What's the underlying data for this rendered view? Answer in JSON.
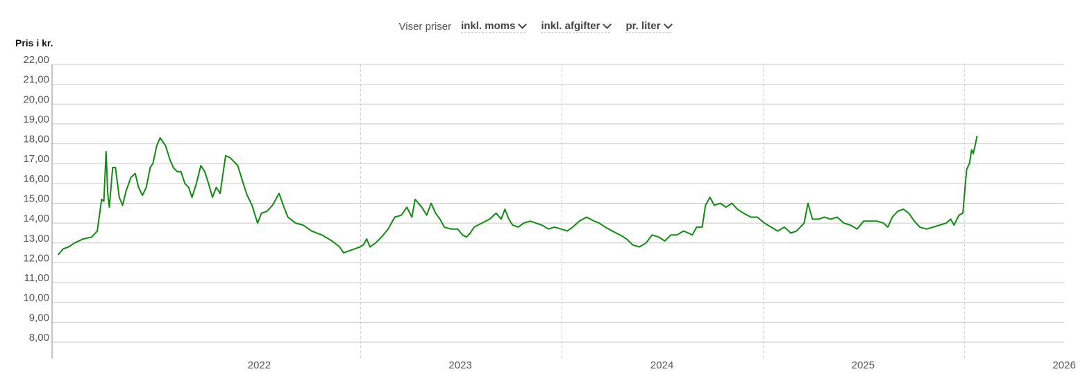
{
  "controls": {
    "label": "Viser priser",
    "options": [
      "inkl. moms",
      "inkl. afgifter",
      "pr. liter"
    ]
  },
  "chart_data": {
    "type": "line",
    "ylabel": "Pris i kr.",
    "ylim": [
      8,
      22
    ],
    "yticks": [
      "22,00",
      "21,00",
      "20,00",
      "19,00",
      "18,00",
      "17,00",
      "16,00",
      "15,00",
      "14,00",
      "13,00",
      "12,00",
      "11,00",
      "10,00",
      "9,00",
      "8,00"
    ],
    "xticks": [
      "2022",
      "2023",
      "2024",
      "2025",
      "2026"
    ],
    "xlim": [
      "2021-06-20",
      "2026-07-01"
    ],
    "grid": true,
    "line_color": "#118a11",
    "series": [
      {
        "values": [
          [
            "2021-07-01",
            12.4
          ],
          [
            "2021-07-10",
            12.7
          ],
          [
            "2021-07-20",
            12.8
          ],
          [
            "2021-07-31",
            13.0
          ],
          [
            "2021-08-15",
            13.2
          ],
          [
            "2021-08-31",
            13.3
          ],
          [
            "2021-09-10",
            13.6
          ],
          [
            "2021-09-18",
            15.2
          ],
          [
            "2021-09-22",
            15.1
          ],
          [
            "2021-09-26",
            17.6
          ],
          [
            "2021-09-29",
            15.5
          ],
          [
            "2021-10-02",
            14.8
          ],
          [
            "2021-10-08",
            16.8
          ],
          [
            "2021-10-13",
            16.8
          ],
          [
            "2021-10-20",
            15.3
          ],
          [
            "2021-10-26",
            14.9
          ],
          [
            "2021-11-01",
            15.6
          ],
          [
            "2021-11-10",
            16.3
          ],
          [
            "2021-11-18",
            16.5
          ],
          [
            "2021-11-24",
            15.8
          ],
          [
            "2021-12-01",
            15.4
          ],
          [
            "2021-12-08",
            15.8
          ],
          [
            "2021-12-15",
            16.8
          ],
          [
            "2021-12-20",
            17.0
          ],
          [
            "2021-12-27",
            17.9
          ],
          [
            "2022-01-02",
            18.3
          ],
          [
            "2022-01-12",
            17.9
          ],
          [
            "2022-01-20",
            17.2
          ],
          [
            "2022-01-26",
            16.8
          ],
          [
            "2022-02-02",
            16.6
          ],
          [
            "2022-02-09",
            16.6
          ],
          [
            "2022-02-16",
            16.0
          ],
          [
            "2022-02-23",
            15.8
          ],
          [
            "2022-03-01",
            15.3
          ],
          [
            "2022-03-09",
            16.0
          ],
          [
            "2022-03-17",
            16.9
          ],
          [
            "2022-03-24",
            16.6
          ],
          [
            "2022-03-31",
            16.0
          ],
          [
            "2022-04-07",
            15.3
          ],
          [
            "2022-04-14",
            15.8
          ],
          [
            "2022-04-21",
            15.5
          ],
          [
            "2022-05-01",
            17.4
          ],
          [
            "2022-05-09",
            17.3
          ],
          [
            "2022-05-16",
            17.1
          ],
          [
            "2022-05-23",
            16.9
          ],
          [
            "2022-06-02",
            16.0
          ],
          [
            "2022-06-09",
            15.4
          ],
          [
            "2022-06-18",
            14.9
          ],
          [
            "2022-06-28",
            14.0
          ],
          [
            "2022-07-05",
            14.5
          ],
          [
            "2022-07-15",
            14.6
          ],
          [
            "2022-07-25",
            14.9
          ],
          [
            "2022-08-06",
            15.5
          ],
          [
            "2022-08-15",
            14.8
          ],
          [
            "2022-08-22",
            14.3
          ],
          [
            "2022-09-05",
            14.0
          ],
          [
            "2022-09-19",
            13.9
          ],
          [
            "2022-10-04",
            13.6
          ],
          [
            "2022-10-23",
            13.4
          ],
          [
            "2022-11-10",
            13.1
          ],
          [
            "2022-11-24",
            12.8
          ],
          [
            "2022-12-01",
            12.5
          ],
          [
            "2022-12-11",
            12.6
          ],
          [
            "2022-12-21",
            12.7
          ],
          [
            "2022-12-31",
            12.8
          ],
          [
            "2023-01-06",
            12.9
          ],
          [
            "2023-01-12",
            13.2
          ],
          [
            "2023-01-18",
            12.8
          ],
          [
            "2023-01-28",
            13.0
          ],
          [
            "2023-02-08",
            13.3
          ],
          [
            "2023-02-20",
            13.7
          ],
          [
            "2023-03-04",
            14.3
          ],
          [
            "2023-03-16",
            14.4
          ],
          [
            "2023-03-26",
            14.8
          ],
          [
            "2023-04-04",
            14.3
          ],
          [
            "2023-04-10",
            15.2
          ],
          [
            "2023-04-16",
            15.0
          ],
          [
            "2023-04-22",
            14.8
          ],
          [
            "2023-05-01",
            14.4
          ],
          [
            "2023-05-09",
            15.0
          ],
          [
            "2023-05-17",
            14.5
          ],
          [
            "2023-05-25",
            14.2
          ],
          [
            "2023-06-02",
            13.8
          ],
          [
            "2023-06-14",
            13.7
          ],
          [
            "2023-06-26",
            13.7
          ],
          [
            "2023-07-05",
            13.4
          ],
          [
            "2023-07-12",
            13.3
          ],
          [
            "2023-07-19",
            13.5
          ],
          [
            "2023-07-26",
            13.8
          ],
          [
            "2023-08-09",
            14.0
          ],
          [
            "2023-08-23",
            14.2
          ],
          [
            "2023-09-04",
            14.5
          ],
          [
            "2023-09-13",
            14.2
          ],
          [
            "2023-09-20",
            14.7
          ],
          [
            "2023-09-27",
            14.2
          ],
          [
            "2023-10-04",
            13.9
          ],
          [
            "2023-10-14",
            13.8
          ],
          [
            "2023-10-24",
            14.0
          ],
          [
            "2023-11-05",
            14.1
          ],
          [
            "2023-11-15",
            14.0
          ],
          [
            "2023-11-26",
            13.9
          ],
          [
            "2023-12-08",
            13.7
          ],
          [
            "2023-12-19",
            13.8
          ],
          [
            "2023-12-31",
            13.7
          ],
          [
            "2024-01-11",
            13.6
          ],
          [
            "2024-01-21",
            13.8
          ],
          [
            "2024-02-02",
            14.1
          ],
          [
            "2024-02-15",
            14.3
          ],
          [
            "2024-02-29",
            14.1
          ],
          [
            "2024-03-09",
            14.0
          ],
          [
            "2024-03-20",
            13.8
          ],
          [
            "2024-04-02",
            13.6
          ],
          [
            "2024-04-16",
            13.4
          ],
          [
            "2024-04-28",
            13.2
          ],
          [
            "2024-05-09",
            12.9
          ],
          [
            "2024-05-21",
            12.8
          ],
          [
            "2024-06-02",
            13.0
          ],
          [
            "2024-06-13",
            13.4
          ],
          [
            "2024-06-25",
            13.3
          ],
          [
            "2024-07-06",
            13.1
          ],
          [
            "2024-07-17",
            13.4
          ],
          [
            "2024-07-28",
            13.4
          ],
          [
            "2024-08-09",
            13.6
          ],
          [
            "2024-08-18",
            13.5
          ],
          [
            "2024-08-25",
            13.4
          ],
          [
            "2024-09-02",
            13.8
          ],
          [
            "2024-09-12",
            13.8
          ],
          [
            "2024-09-18",
            14.9
          ],
          [
            "2024-09-26",
            15.3
          ],
          [
            "2024-10-04",
            14.9
          ],
          [
            "2024-10-15",
            15.0
          ],
          [
            "2024-10-25",
            14.8
          ],
          [
            "2024-11-05",
            15.0
          ],
          [
            "2024-11-15",
            14.7
          ],
          [
            "2024-11-26",
            14.5
          ],
          [
            "2024-12-09",
            14.3
          ],
          [
            "2024-12-21",
            14.3
          ],
          [
            "2025-01-03",
            14.0
          ],
          [
            "2025-01-15",
            13.8
          ],
          [
            "2025-01-27",
            13.6
          ],
          [
            "2025-02-08",
            13.8
          ],
          [
            "2025-02-20",
            13.5
          ],
          [
            "2025-03-02",
            13.6
          ],
          [
            "2025-03-09",
            13.8
          ],
          [
            "2025-03-16",
            14.0
          ],
          [
            "2025-03-23",
            15.0
          ],
          [
            "2025-03-31",
            14.2
          ],
          [
            "2025-04-11",
            14.2
          ],
          [
            "2025-04-22",
            14.3
          ],
          [
            "2025-05-03",
            14.2
          ],
          [
            "2025-05-15",
            14.3
          ],
          [
            "2025-05-27",
            14.0
          ],
          [
            "2025-06-08",
            13.9
          ],
          [
            "2025-06-20",
            13.7
          ],
          [
            "2025-07-02",
            14.1
          ],
          [
            "2025-07-14",
            14.1
          ],
          [
            "2025-07-26",
            14.1
          ],
          [
            "2025-08-07",
            14.0
          ],
          [
            "2025-08-15",
            13.8
          ],
          [
            "2025-08-23",
            14.3
          ],
          [
            "2025-09-02",
            14.6
          ],
          [
            "2025-09-12",
            14.7
          ],
          [
            "2025-09-22",
            14.5
          ],
          [
            "2025-10-02",
            14.1
          ],
          [
            "2025-10-12",
            13.8
          ],
          [
            "2025-10-24",
            13.7
          ],
          [
            "2025-11-05",
            13.8
          ],
          [
            "2025-11-17",
            13.9
          ],
          [
            "2025-11-29",
            14.0
          ],
          [
            "2025-12-07",
            14.2
          ],
          [
            "2025-12-13",
            13.9
          ],
          [
            "2025-12-22",
            14.4
          ],
          [
            "2025-12-29",
            14.5
          ],
          [
            "2026-01-05",
            16.7
          ],
          [
            "2026-01-10",
            17.0
          ],
          [
            "2026-01-14",
            17.7
          ],
          [
            "2026-01-17",
            17.5
          ],
          [
            "2026-01-21",
            18.0
          ],
          [
            "2026-01-24",
            18.4
          ]
        ]
      }
    ]
  }
}
